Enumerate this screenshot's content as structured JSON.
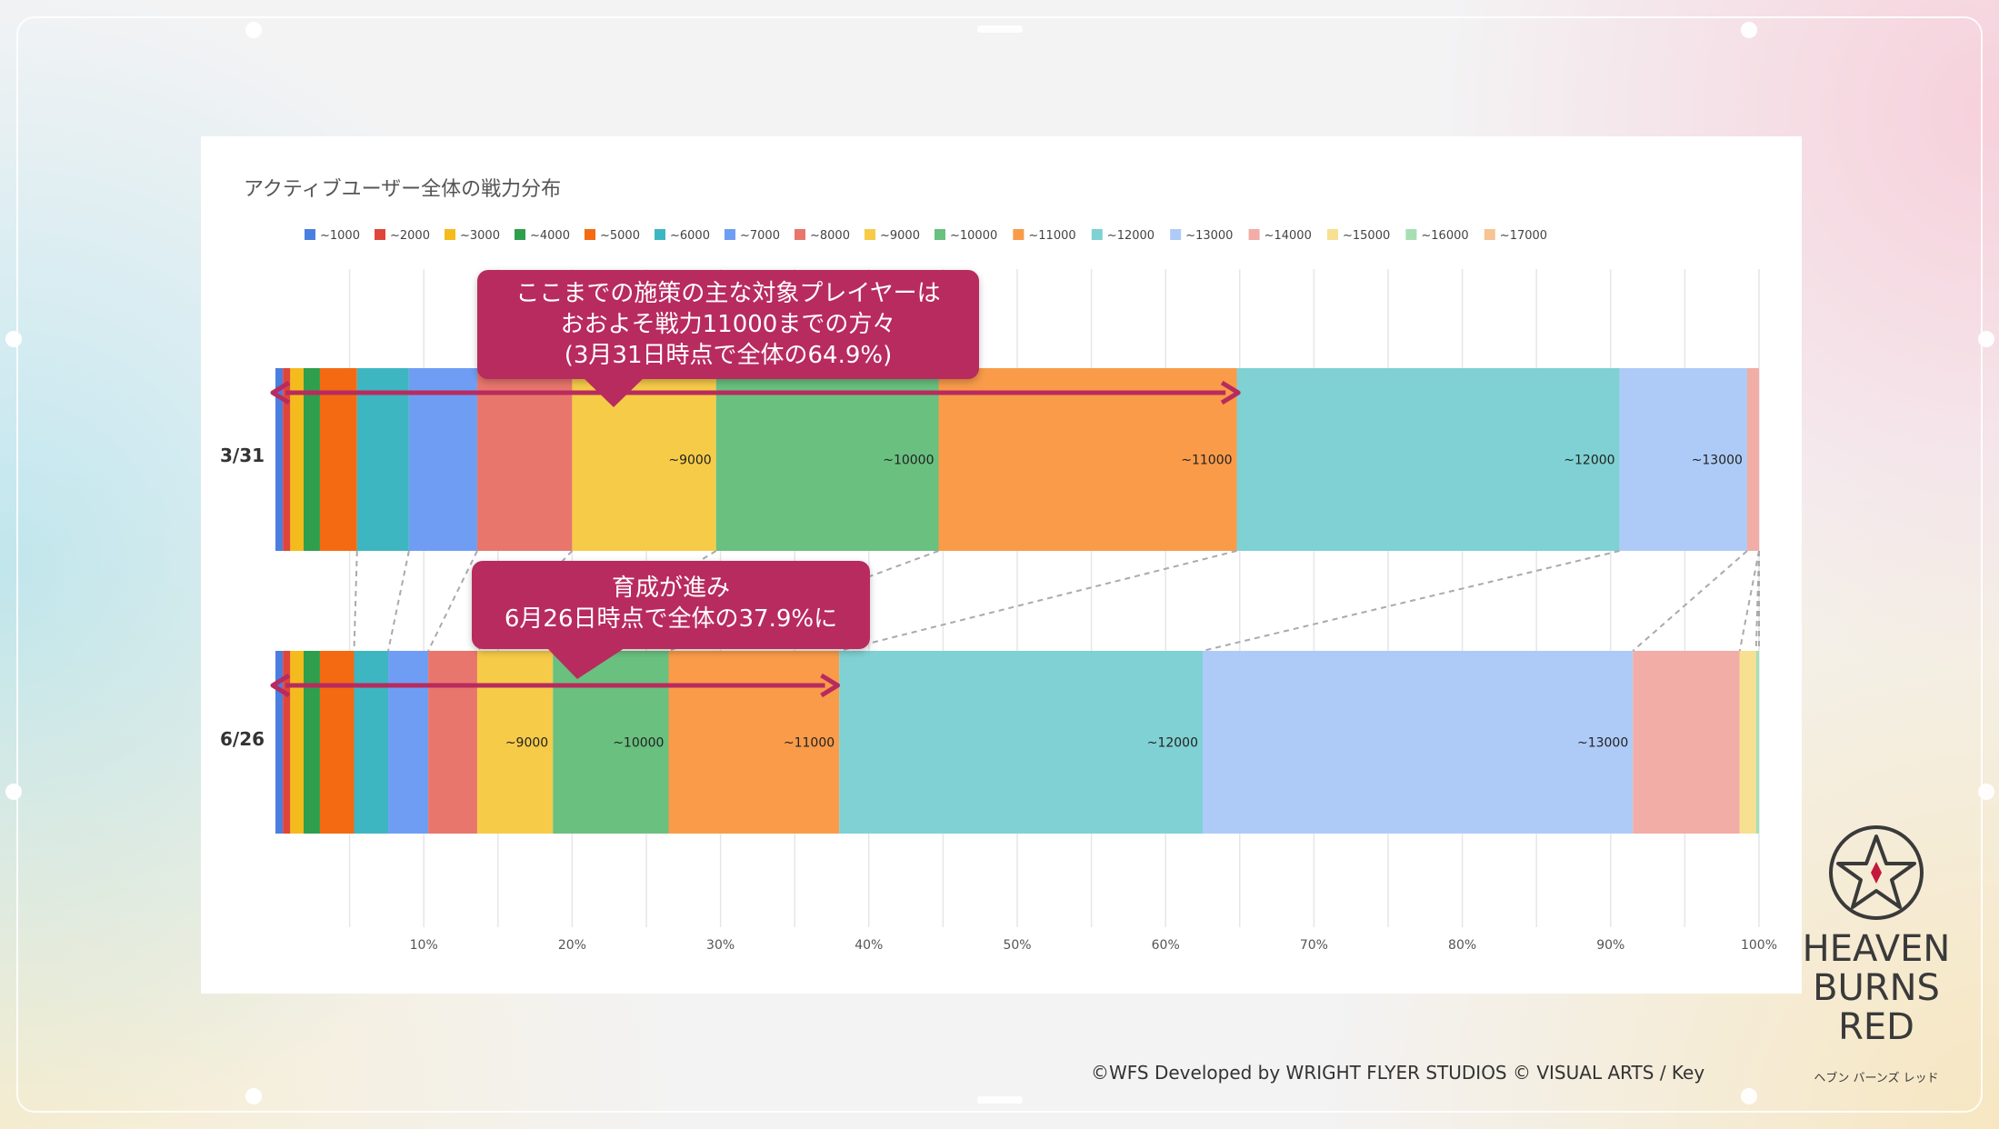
{
  "page": {
    "copyright": "©WFS Developed by WRIGHT FLYER STUDIOS © VISUAL ARTS / Key"
  },
  "logo": {
    "text_lines": [
      "HEAVEN",
      "BURNS",
      "RED"
    ],
    "subtext": "ヘブン バーンズ レッド"
  },
  "callouts": [
    {
      "lines": [
        "ここまでの施策の主な対象プレイヤーは",
        "おおよそ戦力11000までの方々",
        "(3月31日時点で全体の64.9%)"
      ]
    },
    {
      "lines": [
        "育成が進み",
        "6月26日時点で全体の37.9%に"
      ]
    }
  ],
  "chart_data": {
    "type": "bar",
    "orientation": "horizontal",
    "stacked": true,
    "title": "アクティブユーザー全体の戦力分布",
    "xlim": [
      0,
      100
    ],
    "x_tick_labels": [
      "10%",
      "20%",
      "30%",
      "40%",
      "50%",
      "60%",
      "70%",
      "80%",
      "90%",
      "100%"
    ],
    "legend_position": "top",
    "grid": true,
    "categories": [
      "3/31",
      "6/26"
    ],
    "series": [
      {
        "name": "~1000",
        "color": "#4a7fe0",
        "values": [
          0.5,
          0.5
        ]
      },
      {
        "name": "~2000",
        "color": "#e0453a",
        "values": [
          0.5,
          0.5
        ]
      },
      {
        "name": "~3000",
        "color": "#f4bb1c",
        "values": [
          0.9,
          0.9
        ]
      },
      {
        "name": "~4000",
        "color": "#2f9e4d",
        "values": [
          1.1,
          1.1
        ]
      },
      {
        "name": "~5000",
        "color": "#f46a12",
        "values": [
          2.5,
          2.3
        ]
      },
      {
        "name": "~6000",
        "color": "#3db6c2",
        "values": [
          3.5,
          2.3
        ]
      },
      {
        "name": "~7000",
        "color": "#6f9df4",
        "values": [
          4.6,
          2.7
        ]
      },
      {
        "name": "~8000",
        "color": "#e8766d",
        "values": [
          6.4,
          3.3
        ]
      },
      {
        "name": "~9000",
        "color": "#f6cb48",
        "values": [
          9.7,
          5.1
        ]
      },
      {
        "name": "~10000",
        "color": "#69c07f",
        "values": [
          15.0,
          7.8
        ]
      },
      {
        "name": "~11000",
        "color": "#f99b49",
        "values": [
          20.1,
          11.5
        ]
      },
      {
        "name": "~12000",
        "color": "#7fd1d3",
        "values": [
          25.8,
          24.5
        ]
      },
      {
        "name": "~13000",
        "color": "#aecbf8",
        "values": [
          8.6,
          29.0
        ]
      },
      {
        "name": "~14000",
        "color": "#f1ada6",
        "values": [
          0.8,
          7.2
        ]
      },
      {
        "name": "~15000",
        "color": "#f7e091",
        "values": [
          0,
          1.1
        ]
      },
      {
        "name": "~16000",
        "color": "#a7dfb3",
        "values": [
          0,
          0.2
        ]
      },
      {
        "name": "~17000",
        "color": "#f7c493",
        "values": [
          0,
          0
        ]
      }
    ],
    "segment_labels": [
      {
        "category": "3/31",
        "series": [
          "~9000",
          "~10000",
          "~11000",
          "~12000",
          "~13000"
        ]
      },
      {
        "category": "6/26",
        "series": [
          "~9000",
          "~10000",
          "~11000",
          "~12000",
          "~13000"
        ]
      }
    ],
    "arrows": [
      {
        "category": "3/31",
        "from": 0,
        "to": 64.9
      },
      {
        "category": "6/26",
        "from": 0,
        "to": 37.9
      }
    ]
  }
}
